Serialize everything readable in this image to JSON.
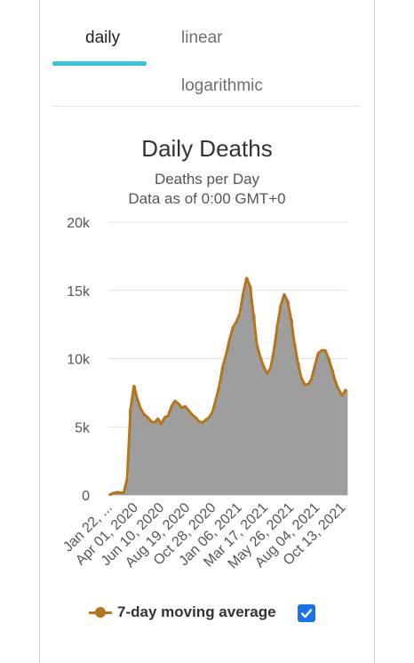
{
  "tabs": [
    {
      "label": "daily",
      "active": true
    },
    {
      "label": "linear",
      "active": false
    },
    {
      "label": "logarithmic",
      "active": false
    }
  ],
  "colors": {
    "accent": "#3cc3e0",
    "bar": "#9e9e9e",
    "moving_average": "#b5761a",
    "checkbox": "#1a73e8",
    "grid": "#e0e0e0"
  },
  "legend": {
    "label": "7-day moving average",
    "checkbox_checked": true,
    "checkbox_icon": "check-icon"
  },
  "chart_data": {
    "type": "bar",
    "title": "Daily Deaths",
    "subtitle": [
      "Deaths per Day",
      "Data as of 0:00 GMT+0"
    ],
    "ylim": [
      0,
      20000
    ],
    "y_ticks": [
      "0",
      "5k",
      "10k",
      "15k",
      "20k"
    ],
    "y_tick_values": [
      0,
      5000,
      10000,
      15000,
      20000
    ],
    "x_tick_labels": [
      "Jan 22, ...",
      "Apr 01, 2020",
      "Jun 10, 2020",
      "Aug 19, 2020",
      "Oct 28, 2020",
      "Jan 06, 2021",
      "Mar 17, 2021",
      "May 26, 2021",
      "Aug 04, 2021",
      "Oct 13, 2021"
    ],
    "grid": true,
    "legend_position": "bottom",
    "series": [
      {
        "type": "bar",
        "x_start": "2020-01-22",
        "x_step_days": 7,
        "values": [
          30,
          150,
          200,
          180,
          150,
          1200,
          6300,
          8000,
          7000,
          6300,
          5900,
          5700,
          5400,
          5300,
          5600,
          5200,
          5700,
          5800,
          6500,
          6900,
          6700,
          6400,
          6500,
          6200,
          5900,
          5700,
          5400,
          5300,
          5500,
          5700,
          6100,
          7000,
          8000,
          9400,
          10300,
          11400,
          12300,
          12700,
          13300,
          14800,
          15900,
          15300,
          13200,
          11000,
          10100,
          9400,
          8900,
          9300,
          10600,
          12400,
          13900,
          14700,
          14200,
          12900,
          11100,
          9700,
          8600,
          8100,
          8100,
          8500,
          9500,
          10400,
          10600,
          10600,
          10000,
          9200,
          8300,
          7700,
          7300,
          7700
        ]
      },
      {
        "name": "7-day moving average",
        "type": "line",
        "x_start": "2020-01-22",
        "x_step_days": 7,
        "values": [
          30,
          150,
          200,
          180,
          150,
          1200,
          6300,
          8000,
          7000,
          6300,
          5900,
          5700,
          5400,
          5300,
          5600,
          5200,
          5700,
          5800,
          6500,
          6900,
          6700,
          6400,
          6500,
          6200,
          5900,
          5700,
          5400,
          5300,
          5500,
          5700,
          6100,
          7000,
          8000,
          9400,
          10300,
          11400,
          12300,
          12700,
          13300,
          14800,
          15900,
          15300,
          13200,
          11000,
          10100,
          9400,
          8900,
          9300,
          10600,
          12400,
          13900,
          14700,
          14200,
          12900,
          11100,
          9700,
          8600,
          8100,
          8100,
          8500,
          9500,
          10400,
          10600,
          10600,
          10000,
          9200,
          8300,
          7700,
          7300,
          7700
        ]
      }
    ]
  }
}
